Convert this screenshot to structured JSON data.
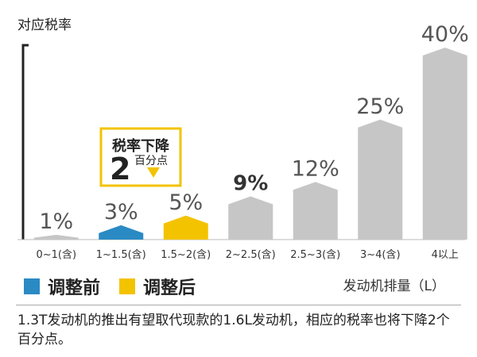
{
  "chart_data": {
    "type": "bar",
    "title": "对应税率",
    "ylabel": "对应税率",
    "xlabel": "发动机排量（L）",
    "ylim": [
      0,
      40
    ],
    "categories": [
      "0~1(含)",
      "1~1.5(含)",
      "1.5~2(含)",
      "2~2.5(含)",
      "2.5~3(含)",
      "3~4(含)",
      "4以上"
    ],
    "values": [
      1,
      3,
      5,
      9,
      12,
      25,
      40
    ],
    "value_labels": [
      "1%",
      "3%",
      "5%",
      "9%",
      "12%",
      "25%",
      "40%"
    ],
    "bar_groups": [
      "default",
      "before",
      "after",
      "default",
      "default",
      "default",
      "default"
    ],
    "highlight_label_index": 3,
    "legend": [
      {
        "name": "调整前",
        "color": "#2a8ac4"
      },
      {
        "name": "调整后",
        "color": "#f3c300"
      }
    ],
    "annotation": {
      "title": "税率下降",
      "number": "2",
      "unit": "百分点",
      "target_index": 2,
      "border_color": "#f3c300",
      "arrow_color": "#f3c300"
    },
    "colors": {
      "default": "#c6c6c6",
      "before": "#2a8ac4",
      "after": "#f3c300"
    },
    "grid": false,
    "legend_position": "bottom-left"
  },
  "footnote": "1.3T发动机的推出有望取代现款的1.6L发动机，相应的税率也将下降2个百分点。"
}
